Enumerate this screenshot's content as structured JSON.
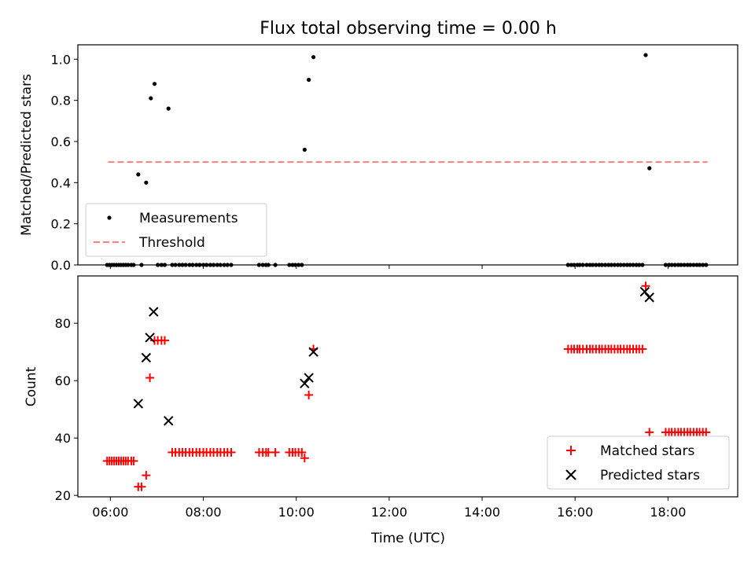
{
  "chart_data": [
    {
      "type": "scatter",
      "title": "Flux total observing time = 0.00 h",
      "xlabel": "",
      "ylabel": "Matched/Predicted stars",
      "xlim": [
        5.3,
        19.5
      ],
      "ylim": [
        0.0,
        1.07
      ],
      "yticks": [
        0.0,
        0.2,
        0.4,
        0.6,
        0.8,
        1.0
      ],
      "ytick_labels": [
        "0.0",
        "0.2",
        "0.4",
        "0.6",
        "0.8",
        "1.0"
      ],
      "xticks": [
        6,
        8,
        10,
        12,
        14,
        16,
        18
      ],
      "legend": {
        "position": "lower-left",
        "entries": [
          "Measurements",
          "Threshold"
        ]
      },
      "series": [
        {
          "name": "Measurements",
          "color": "#000000",
          "x": [
            5.93,
            5.98,
            6.03,
            6.08,
            6.13,
            6.18,
            6.23,
            6.28,
            6.33,
            6.38,
            6.45,
            6.5,
            6.6,
            6.67,
            6.77,
            6.87,
            6.95,
            7.02,
            7.1,
            7.17,
            7.25,
            7.33,
            7.4,
            7.48,
            7.55,
            7.62,
            7.7,
            7.77,
            7.85,
            7.92,
            8.0,
            8.07,
            8.15,
            8.22,
            8.3,
            8.37,
            8.45,
            8.52,
            8.6,
            9.2,
            9.28,
            9.35,
            9.4,
            9.55,
            9.85,
            9.92,
            9.98,
            10.05,
            10.12,
            10.18,
            10.27,
            10.37,
            15.85,
            15.92,
            15.98,
            16.05,
            16.1,
            16.17,
            16.25,
            16.32,
            16.38,
            16.45,
            16.52,
            16.58,
            16.65,
            16.72,
            16.78,
            16.85,
            16.92,
            16.98,
            17.05,
            17.12,
            17.18,
            17.25,
            17.32,
            17.38,
            17.45,
            17.52,
            17.6,
            17.95,
            18.02,
            18.08,
            18.15,
            18.22,
            18.28,
            18.35,
            18.42,
            18.48,
            18.55,
            18.62,
            18.68,
            18.75,
            18.82
          ],
          "y": [
            0,
            0,
            0,
            0,
            0,
            0,
            0,
            0,
            0,
            0,
            0,
            0,
            0.44,
            0,
            0.4,
            0.81,
            0.88,
            0,
            0,
            0,
            0.76,
            0,
            0,
            0,
            0,
            0,
            0,
            0,
            0,
            0,
            0,
            0,
            0,
            0,
            0,
            0,
            0,
            0,
            0,
            0,
            0,
            0,
            0,
            0,
            0,
            0,
            0,
            0,
            0,
            0.56,
            0.9,
            1.01,
            0,
            0,
            0,
            0,
            0,
            0,
            0,
            0,
            0,
            0,
            0,
            0,
            0,
            0,
            0,
            0,
            0,
            0,
            0,
            0,
            0,
            0,
            0,
            0,
            0,
            1.02,
            0.47,
            0,
            0,
            0,
            0,
            0,
            0,
            0,
            0,
            0,
            0,
            0,
            0,
            0,
            0
          ]
        },
        {
          "name": "Threshold",
          "color": "#ff8080",
          "style": "dashed",
          "x": [
            5.95,
            18.85
          ],
          "y": [
            0.5,
            0.5
          ]
        }
      ]
    },
    {
      "type": "scatter",
      "title": "",
      "xlabel": "Time (UTC)",
      "ylabel": "Count",
      "xlim": [
        5.3,
        19.5
      ],
      "ylim": [
        19.5,
        96.5
      ],
      "yticks": [
        20,
        40,
        60,
        80
      ],
      "ytick_labels": [
        "20",
        "40",
        "60",
        "80"
      ],
      "xticks": [
        6,
        8,
        10,
        12,
        14,
        16,
        18
      ],
      "xtick_labels": [
        "06:00",
        "08:00",
        "10:00",
        "12:00",
        "14:00",
        "16:00",
        "18:00"
      ],
      "legend": {
        "position": "lower-right",
        "entries": [
          "Matched stars",
          "Predicted stars"
        ]
      },
      "series": [
        {
          "name": "Matched stars",
          "color": "#ff0000",
          "marker": "plus",
          "x": [
            5.93,
            5.98,
            6.03,
            6.08,
            6.13,
            6.18,
            6.23,
            6.28,
            6.33,
            6.38,
            6.45,
            6.5,
            6.6,
            6.67,
            6.77,
            6.85,
            6.95,
            7.02,
            7.1,
            7.17,
            7.33,
            7.4,
            7.48,
            7.55,
            7.62,
            7.7,
            7.77,
            7.85,
            7.92,
            8.0,
            8.07,
            8.15,
            8.22,
            8.3,
            8.37,
            8.45,
            8.52,
            8.6,
            9.2,
            9.28,
            9.35,
            9.4,
            9.55,
            9.85,
            9.92,
            9.98,
            10.05,
            10.12,
            10.18,
            10.27,
            10.37,
            15.85,
            15.92,
            15.98,
            16.05,
            16.1,
            16.17,
            16.25,
            16.32,
            16.38,
            16.45,
            16.52,
            16.58,
            16.65,
            16.72,
            16.78,
            16.85,
            16.92,
            16.98,
            17.05,
            17.12,
            17.18,
            17.25,
            17.32,
            17.38,
            17.45,
            17.52,
            17.6,
            17.95,
            18.02,
            18.08,
            18.15,
            18.22,
            18.28,
            18.35,
            18.42,
            18.48,
            18.55,
            18.62,
            18.68,
            18.75,
            18.82
          ],
          "y": [
            32,
            32,
            32,
            32,
            32,
            32,
            32,
            32,
            32,
            32,
            32,
            32,
            23,
            23,
            27,
            61,
            74,
            74,
            74,
            74,
            35,
            35,
            35,
            35,
            35,
            35,
            35,
            35,
            35,
            35,
            35,
            35,
            35,
            35,
            35,
            35,
            35,
            35,
            35,
            35,
            35,
            35,
            35,
            35,
            35,
            35,
            35,
            35,
            33,
            55,
            71,
            71,
            71,
            71,
            71,
            71,
            71,
            71,
            71,
            71,
            71,
            71,
            71,
            71,
            71,
            71,
            71,
            71,
            71,
            71,
            71,
            71,
            71,
            71,
            71,
            71,
            93,
            42,
            42,
            42,
            42,
            42,
            42,
            42,
            42,
            42,
            42,
            42,
            42,
            42,
            42,
            42
          ]
        },
        {
          "name": "Predicted stars",
          "color": "#000000",
          "marker": "x",
          "x": [
            6.6,
            6.77,
            6.85,
            6.93,
            7.25,
            10.18,
            10.27,
            10.37,
            17.5,
            17.6
          ],
          "y": [
            52,
            68,
            75,
            84,
            46,
            59,
            61,
            70,
            91,
            89
          ]
        }
      ]
    }
  ]
}
